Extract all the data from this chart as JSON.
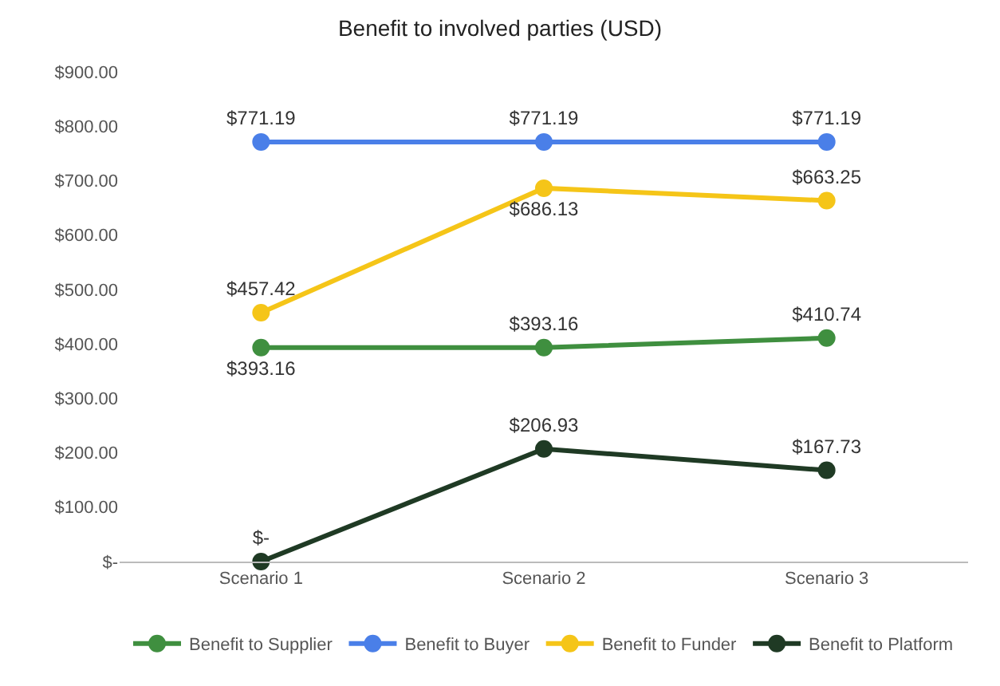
{
  "chart_data": {
    "type": "line",
    "title": "Benefit to involved parties (USD)",
    "categories": [
      "Scenario 1",
      "Scenario 2",
      "Scenario 3"
    ],
    "series": [
      {
        "name": "Benefit to Supplier",
        "color": "#3f8f3f",
        "values": [
          393.16,
          393.16,
          410.74
        ],
        "value_labels": [
          "$393.16",
          "$393.16",
          "$410.74"
        ]
      },
      {
        "name": "Benefit to Buyer",
        "color": "#4a7fe8",
        "values": [
          771.19,
          771.19,
          771.19
        ],
        "value_labels": [
          "$771.19",
          "$771.19",
          "$771.19"
        ]
      },
      {
        "name": "Benefit to Funder",
        "color": "#f5c518",
        "values": [
          457.42,
          686.13,
          663.25
        ],
        "value_labels": [
          "$457.42",
          "$686.13",
          "$663.25"
        ]
      },
      {
        "name": "Benefit to Platform",
        "color": "#1f3a24",
        "values": [
          0,
          206.93,
          167.73
        ],
        "value_labels": [
          "$-",
          "$206.93",
          "$167.73"
        ]
      }
    ],
    "ylim": [
      0,
      900
    ],
    "yticks": [
      {
        "value": 0,
        "label": "$-"
      },
      {
        "value": 100,
        "label": "$100.00"
      },
      {
        "value": 200,
        "label": "$200.00"
      },
      {
        "value": 300,
        "label": "$300.00"
      },
      {
        "value": 400,
        "label": "$400.00"
      },
      {
        "value": 500,
        "label": "$500.00"
      },
      {
        "value": 600,
        "label": "$600.00"
      },
      {
        "value": 700,
        "label": "$700.00"
      },
      {
        "value": 800,
        "label": "$800.00"
      },
      {
        "value": 900,
        "label": "$900.00"
      }
    ],
    "grid": false,
    "legend": "bottom",
    "marker": "circle",
    "line_style": "solid"
  }
}
